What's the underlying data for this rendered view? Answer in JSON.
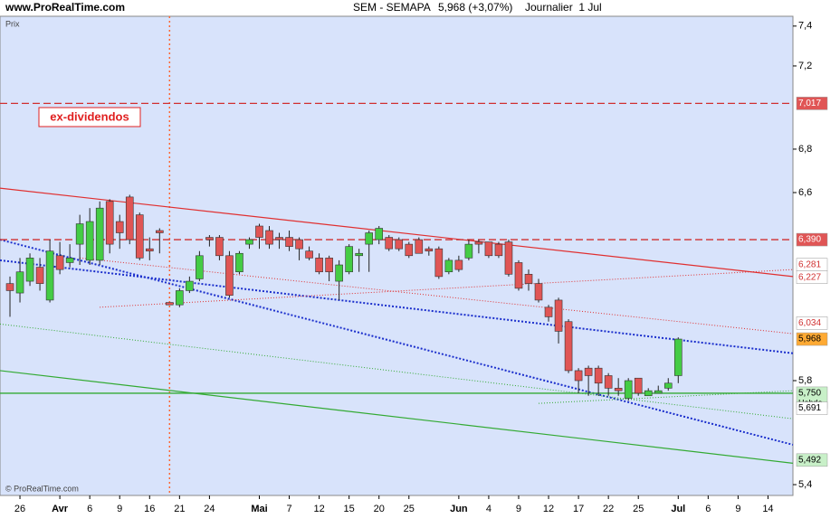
{
  "chart_data": {
    "type": "candlestick",
    "site": "www.ProRealTime.com",
    "title": "SEM - SEMAPA",
    "quote": "5,968 (+3,07%)",
    "period": "Journalier  1 Jul",
    "ylabel": "Prix",
    "annotation": "ex-dividendos",
    "footer": "© ProRealTime.com",
    "tag_note": "Hebdo",
    "log_scale": true,
    "ylim": [
      5.36,
      7.45
    ],
    "yticks": [
      {
        "value": 5.4,
        "label": "5,4"
      },
      {
        "value": 5.8,
        "label": "5,8"
      },
      {
        "value": 6.6,
        "label": "6,6"
      },
      {
        "value": 6.8,
        "label": "6,8"
      },
      {
        "value": 7.2,
        "label": "7,2"
      },
      {
        "value": 7.4,
        "label": "7,4"
      }
    ],
    "xlim": [
      -1,
      78.5
    ],
    "xticks": [
      {
        "value": 1,
        "label": "26"
      },
      {
        "value": 5,
        "label": "Avr"
      },
      {
        "value": 8,
        "label": "6"
      },
      {
        "value": 11,
        "label": "9"
      },
      {
        "value": 14,
        "label": "16"
      },
      {
        "value": 17,
        "label": "21"
      },
      {
        "value": 20,
        "label": "24"
      },
      {
        "value": 25,
        "label": "Mai"
      },
      {
        "value": 28,
        "label": "7"
      },
      {
        "value": 31,
        "label": "12"
      },
      {
        "value": 34,
        "label": "15"
      },
      {
        "value": 37,
        "label": "20"
      },
      {
        "value": 40,
        "label": "25"
      },
      {
        "value": 45,
        "label": "Jun"
      },
      {
        "value": 48,
        "label": "4"
      },
      {
        "value": 51,
        "label": "9"
      },
      {
        "value": 54,
        "label": "12"
      },
      {
        "value": 57,
        "label": "17"
      },
      {
        "value": 60,
        "label": "22"
      },
      {
        "value": 63,
        "label": "25"
      },
      {
        "value": 67,
        "label": "Jul"
      },
      {
        "value": 70,
        "label": "6"
      },
      {
        "value": 73,
        "label": "9"
      },
      {
        "value": 76,
        "label": "14"
      }
    ],
    "up_color": "#44cc44",
    "down_color": "#e05555",
    "open": [
      6.2,
      6.16,
      6.21,
      6.27,
      6.13,
      6.32,
      6.29,
      6.37,
      6.3,
      6.3,
      6.56,
      6.47,
      6.58,
      6.5,
      6.35,
      6.43,
      6.12,
      6.11,
      6.17,
      6.22,
      6.4,
      6.4,
      6.32,
      6.25,
      6.37,
      6.45,
      6.43,
      6.4,
      6.4,
      6.39,
      6.34,
      6.31,
      6.31,
      6.21,
      6.25,
      6.32,
      6.37,
      6.39,
      6.4,
      6.39,
      6.37,
      6.39,
      6.35,
      6.35,
      6.25,
      6.3,
      6.31,
      6.38,
      6.38,
      6.37,
      6.38,
      6.29,
      6.24,
      6.2,
      6.1,
      6.13,
      6.04,
      5.84,
      5.85,
      5.85,
      5.82,
      5.77,
      5.73,
      5.81,
      5.74,
      5.75,
      5.77,
      5.82
    ],
    "close": [
      6.17,
      6.25,
      6.31,
      6.2,
      6.34,
      6.26,
      6.31,
      6.46,
      6.47,
      6.53,
      6.37,
      6.42,
      6.39,
      6.31,
      6.34,
      6.42,
      6.11,
      6.17,
      6.21,
      6.32,
      6.39,
      6.32,
      6.15,
      6.33,
      6.39,
      6.4,
      6.37,
      6.39,
      6.36,
      6.35,
      6.31,
      6.25,
      6.25,
      6.28,
      6.36,
      6.33,
      6.42,
      6.44,
      6.35,
      6.35,
      6.32,
      6.33,
      6.34,
      6.23,
      6.3,
      6.26,
      6.37,
      6.37,
      6.32,
      6.32,
      6.24,
      6.18,
      6.2,
      6.13,
      6.06,
      6.0,
      5.84,
      5.8,
      5.82,
      5.79,
      5.77,
      5.76,
      5.8,
      5.75,
      5.76,
      5.76,
      5.79,
      5.968
    ],
    "high": [
      6.23,
      6.31,
      6.33,
      6.31,
      6.39,
      6.38,
      6.37,
      6.5,
      6.53,
      6.56,
      6.57,
      6.5,
      6.59,
      6.51,
      6.4,
      6.44,
      6.12,
      6.18,
      6.23,
      6.34,
      6.41,
      6.41,
      6.34,
      6.34,
      6.4,
      6.46,
      6.45,
      6.42,
      6.43,
      6.4,
      6.36,
      6.33,
      6.32,
      6.3,
      6.37,
      6.35,
      6.43,
      6.45,
      6.41,
      6.4,
      6.38,
      6.4,
      6.36,
      6.36,
      6.31,
      6.32,
      6.39,
      6.39,
      6.38,
      6.38,
      6.39,
      6.3,
      6.26,
      6.22,
      6.11,
      6.14,
      6.05,
      5.85,
      5.86,
      5.86,
      5.83,
      5.81,
      5.81,
      5.81,
      5.77,
      5.78,
      5.81,
      5.975
    ],
    "low": [
      6.06,
      6.12,
      6.19,
      6.17,
      6.12,
      6.24,
      6.27,
      6.28,
      6.28,
      6.28,
      6.33,
      6.35,
      6.37,
      6.3,
      6.3,
      6.33,
      6.11,
      6.1,
      6.16,
      6.21,
      6.36,
      6.3,
      6.14,
      6.24,
      6.35,
      6.35,
      6.35,
      6.35,
      6.34,
      6.3,
      6.3,
      6.24,
      6.21,
      6.13,
      6.24,
      6.25,
      6.25,
      6.37,
      6.34,
      6.34,
      6.31,
      6.33,
      6.32,
      6.22,
      6.24,
      6.25,
      6.3,
      6.33,
      6.31,
      6.31,
      6.23,
      6.17,
      6.17,
      6.12,
      6.04,
      5.95,
      5.83,
      5.75,
      5.74,
      5.74,
      5.74,
      5.74,
      5.72,
      5.74,
      5.74,
      5.75,
      5.76,
      5.79
    ],
    "event_x": 16,
    "event_color": "#ff6633",
    "trendlines": [
      {
        "from": [
          -1,
          6.62
        ],
        "to": [
          78.5,
          6.23
        ],
        "color": "#e03030",
        "dash": "solid"
      },
      {
        "from": [
          -1,
          6.3
        ],
        "to": [
          78.5,
          5.91
        ],
        "color": "#1a2ecc",
        "dash": "dotted"
      },
      {
        "from": [
          -1,
          6.39
        ],
        "to": [
          78.5,
          5.55
        ],
        "color": "#1a2ecc",
        "dash": "dotted"
      },
      {
        "from": [
          -1,
          5.84
        ],
        "to": [
          78.5,
          5.48
        ],
        "color": "#33aa33",
        "dash": "solid"
      },
      {
        "from": [
          -1,
          6.03
        ],
        "to": [
          78.5,
          5.65
        ],
        "color": "#33aa33",
        "dash": "thin"
      },
      {
        "from": [
          9,
          6.1
        ],
        "to": [
          78.5,
          6.26
        ],
        "color": "#e03030",
        "dash": "thin"
      },
      {
        "from": [
          7,
          6.31
        ],
        "to": [
          78.5,
          5.99
        ],
        "color": "#e03030",
        "dash": "thin"
      },
      {
        "from": [
          53,
          5.71
        ],
        "to": [
          78.5,
          5.76
        ],
        "color": "#33aa33",
        "dash": "thin"
      }
    ],
    "price_tags": [
      {
        "value": 7.017,
        "label": "7,017",
        "bg": "#e05555",
        "fg": "#ffffff",
        "hline": "dashed",
        "line_color": "#d03030"
      },
      {
        "value": 6.39,
        "label": "6,390",
        "bg": "#e05555",
        "fg": "#ffffff",
        "hline": "dashed",
        "line_color": "#d03030"
      },
      {
        "value": 6.281,
        "label": "6,281",
        "bg": "#ffffff",
        "fg": "#d03030"
      },
      {
        "value": 6.227,
        "label": "6,227",
        "bg": "#ffffff",
        "fg": "#d03030"
      },
      {
        "value": 6.034,
        "label": "6,034",
        "bg": "#ffffff",
        "fg": "#d03030"
      },
      {
        "value": 5.968,
        "label": "5,968",
        "bg": "#ffaa33",
        "fg": "#000000"
      },
      {
        "value": 5.75,
        "label": "5,750",
        "bg": "#c8f0c8",
        "fg": "#000000",
        "hline": "solid",
        "line_color": "#33aa33"
      },
      {
        "value": 5.691,
        "label": "5,691",
        "bg": "#ffffff",
        "fg": "#000000"
      },
      {
        "value": 5.492,
        "label": "5,492",
        "bg": "#c8f0c8",
        "fg": "#000000"
      }
    ]
  }
}
